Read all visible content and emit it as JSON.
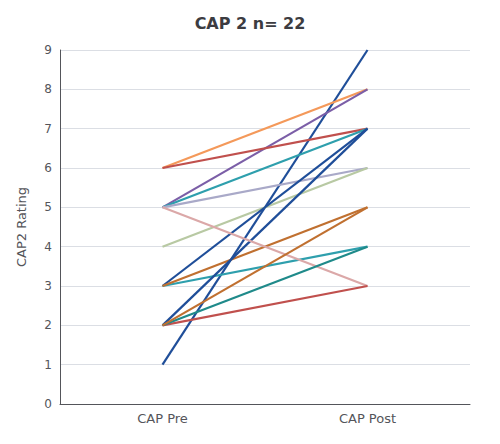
{
  "chart_data": {
    "type": "line",
    "title": "CAP 2 n= 22",
    "categories": [
      "CAP Pre",
      "CAP Post"
    ],
    "ylabel": "CAP2 Rating",
    "ylim": [
      0,
      9
    ],
    "yticks": [
      0,
      1,
      2,
      3,
      4,
      5,
      6,
      7,
      8,
      9
    ],
    "grid": true,
    "series": [
      {
        "color": "#1F4E99",
        "values": [
          1,
          9
        ]
      },
      {
        "color": "#F4995A",
        "values": [
          6,
          8
        ]
      },
      {
        "color": "#7B5EA7",
        "values": [
          5,
          8
        ]
      },
      {
        "color": "#C0504D",
        "values": [
          6,
          7
        ]
      },
      {
        "color": "#2E9FAD",
        "values": [
          5,
          7
        ]
      },
      {
        "color": "#A9A9C8",
        "values": [
          5,
          6
        ]
      },
      {
        "color": "#B8C9A3",
        "values": [
          4,
          6
        ]
      },
      {
        "color": "#1F4E99",
        "values": [
          3,
          7
        ]
      },
      {
        "color": "#2E9FAD",
        "values": [
          3,
          4
        ]
      },
      {
        "color": "#C07030",
        "values": [
          3,
          5
        ]
      },
      {
        "color": "#1F4E99",
        "values": [
          2,
          7
        ]
      },
      {
        "color": "#DBA8A8",
        "values": [
          5,
          3
        ]
      },
      {
        "color": "#C0504D",
        "values": [
          2,
          3
        ]
      },
      {
        "color": "#1F8A8A",
        "values": [
          2,
          4
        ]
      },
      {
        "color": "#C07030",
        "values": [
          2,
          5
        ]
      }
    ]
  }
}
